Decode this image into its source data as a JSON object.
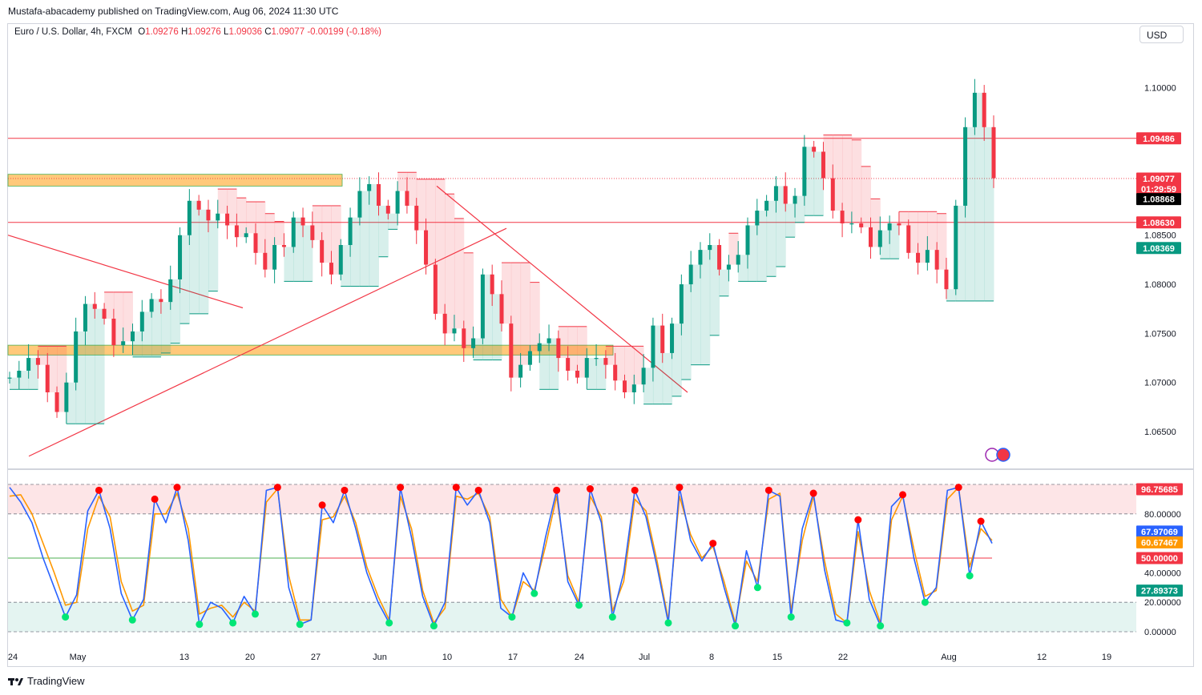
{
  "publisher": "Mustafa-abacademy published on TradingView.com, Aug 06, 2024 11:30 UTC",
  "legend": {
    "symbol": "Euro / U.S. Dollar, 4h, FXCM",
    "open_label": "O",
    "open": "1.09276",
    "high_label": "H",
    "high": "1.09276",
    "low_label": "L",
    "low": "1.09036",
    "close_label": "C",
    "close": "1.09077",
    "change": "-0.00199 (-0.18%)"
  },
  "currency": "USD",
  "footer": "TradingView",
  "colors": {
    "up": "#089981",
    "down": "#f23645",
    "zone": "#ffb74d",
    "k_line": "#2962ff",
    "d_line": "#ff9800"
  },
  "chart_data": [
    {
      "type": "line",
      "name": "price",
      "x_ticks": [
        "24",
        "May",
        "13",
        "20",
        "27",
        "Jun",
        "10",
        "17",
        "24",
        "Jul",
        "8",
        "15",
        "22",
        "Aug",
        "12",
        "19"
      ],
      "y_ticks": [
        "1.10000",
        "1.09500",
        "1.09000",
        "1.08500",
        "1.08000",
        "1.07500",
        "1.07000",
        "1.06500"
      ],
      "ylim": [
        1.0615,
        1.1065
      ],
      "close": [
        1.0705,
        1.0712,
        1.0725,
        1.0718,
        1.069,
        1.067,
        1.07,
        1.0752,
        1.078,
        1.0775,
        1.0765,
        1.0738,
        1.0742,
        1.0752,
        1.0772,
        1.0785,
        1.0782,
        1.0805,
        1.085,
        1.0885,
        1.0876,
        1.0865,
        1.0872,
        1.086,
        1.0848,
        1.0852,
        1.0832,
        1.0815,
        1.084,
        1.0838,
        1.0868,
        1.086,
        1.0845,
        1.0822,
        1.081,
        1.084,
        1.0868,
        1.0895,
        1.0902,
        1.088,
        1.0872,
        1.0895,
        1.088,
        1.0855,
        1.082,
        1.077,
        1.075,
        1.0755,
        1.0735,
        1.0745,
        1.081,
        1.079,
        1.076,
        1.0705,
        1.0718,
        1.0732,
        1.074,
        1.0745,
        1.0725,
        1.0712,
        1.0705,
        1.0725,
        1.0725,
        1.0718,
        1.0702,
        1.069,
        1.0698,
        1.0715,
        1.0758,
        1.073,
        1.076,
        1.08,
        1.082,
        1.0835,
        1.084,
        1.0815,
        1.082,
        1.083,
        1.086,
        1.0875,
        1.0885,
        1.09,
        1.0882,
        1.089,
        1.094,
        1.0935,
        1.0908,
        1.0875,
        1.0862,
        1.0862,
        1.0858,
        1.0838,
        1.0855,
        1.0862,
        1.086,
        1.0832,
        1.0822,
        1.0835,
        1.0815,
        1.0795,
        1.088,
        1.096,
        1.0995,
        1.096,
        1.0908
      ],
      "horizontal_levels": [
        1.09486,
        1.0863
      ],
      "zones": [
        [
          1.09,
          1.0912
        ],
        [
          1.0728,
          1.0738
        ]
      ],
      "price_tags": [
        {
          "value": "1.09486",
          "color": "#f23645"
        },
        {
          "value": "1.09077",
          "color": "#f23645",
          "countdown": "01:29:59"
        },
        {
          "value": "1.08868",
          "color": "#000000"
        },
        {
          "value": "1.08630",
          "color": "#f23645"
        },
        {
          "value": "1.08369",
          "color": "#089981"
        }
      ]
    },
    {
      "type": "line",
      "name": "stochastic",
      "y_ticks": [
        "80.00000",
        "40.00000",
        "20.00000",
        "0.00000"
      ],
      "ylim": [
        0,
        100
      ],
      "k": [
        98,
        88,
        74,
        50,
        30,
        10,
        25,
        82,
        96,
        70,
        26,
        8,
        22,
        90,
        74,
        98,
        62,
        5,
        20,
        16,
        6,
        24,
        12,
        96,
        98,
        30,
        5,
        8,
        86,
        74,
        96,
        70,
        40,
        20,
        6,
        98,
        64,
        24,
        4,
        20,
        98,
        86,
        96,
        74,
        16,
        10,
        40,
        26,
        64,
        96,
        34,
        18,
        97,
        74,
        10,
        40,
        96,
        78,
        44,
        6,
        98,
        62,
        48,
        60,
        30,
        4,
        55,
        30,
        96,
        92,
        10,
        70,
        94,
        42,
        8,
        6,
        76,
        22,
        4,
        85,
        93,
        50,
        20,
        30,
        96,
        98,
        38,
        75,
        60
      ],
      "d": [
        92,
        93,
        80,
        60,
        40,
        18,
        20,
        70,
        92,
        78,
        34,
        14,
        18,
        80,
        80,
        94,
        70,
        12,
        16,
        18,
        10,
        20,
        14,
        88,
        97,
        38,
        8,
        8,
        76,
        78,
        92,
        74,
        44,
        24,
        8,
        92,
        70,
        28,
        6,
        16,
        92,
        90,
        94,
        78,
        22,
        10,
        34,
        28,
        58,
        92,
        38,
        20,
        92,
        78,
        14,
        34,
        90,
        82,
        48,
        8,
        92,
        66,
        50,
        58,
        34,
        6,
        48,
        34,
        90,
        94,
        14,
        62,
        92,
        48,
        12,
        6,
        68,
        28,
        6,
        76,
        92,
        56,
        24,
        28,
        90,
        98,
        44,
        70,
        62
      ],
      "values_tags": [
        {
          "value": "96.75685",
          "color": "#f23645"
        },
        {
          "value": "67.97069",
          "color": "#2962ff"
        },
        {
          "value": "60.67467",
          "color": "#ff9800"
        },
        {
          "value": "50.00000",
          "color": "#f23645"
        },
        {
          "value": "27.89373",
          "color": "#089981"
        }
      ],
      "overbought": 80,
      "oversold": 20,
      "midline": 50
    }
  ]
}
